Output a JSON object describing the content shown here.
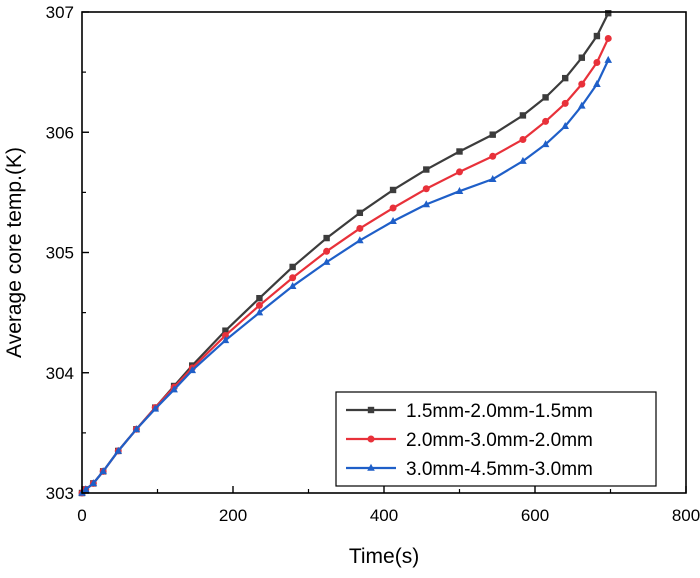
{
  "chart_data": {
    "type": "line",
    "title": "",
    "xlabel": "Time(s)",
    "ylabel": "Average core temp.(K)",
    "xlim": [
      0,
      800
    ],
    "ylim": [
      303,
      307
    ],
    "x_ticks": [
      0,
      200,
      400,
      600,
      800
    ],
    "y_ticks": [
      303,
      304,
      305,
      306,
      307
    ],
    "x_tick_labels": [
      "0",
      "200",
      "400",
      "600",
      "800"
    ],
    "y_tick_labels": [
      "303",
      "304",
      "305",
      "306",
      "307"
    ],
    "grid": false,
    "legend_position": "bottom-right",
    "series": [
      {
        "name": "1.5mm-2.0mm-1.5mm",
        "color": "#3c3c3c",
        "marker": "square",
        "points": [
          [
            0,
            303.0
          ],
          [
            5,
            303.03
          ],
          [
            15,
            303.08
          ],
          [
            28,
            303.18
          ],
          [
            48,
            303.35
          ],
          [
            72,
            303.53
          ],
          [
            97,
            303.71
          ],
          [
            122,
            303.89
          ],
          [
            146,
            304.06
          ],
          [
            190,
            304.35
          ],
          [
            235,
            304.62
          ],
          [
            279,
            304.88
          ],
          [
            324,
            305.12
          ],
          [
            368,
            305.33
          ],
          [
            412,
            305.52
          ],
          [
            456,
            305.69
          ],
          [
            500,
            305.84
          ],
          [
            544,
            305.98
          ],
          [
            584,
            306.14
          ],
          [
            614,
            306.29
          ],
          [
            640,
            306.45
          ],
          [
            662,
            306.62
          ],
          [
            682,
            306.8
          ],
          [
            697,
            306.99
          ]
        ]
      },
      {
        "name": "2.0mm-3.0mm-2.0mm",
        "color": "#e8313a",
        "marker": "circle",
        "points": [
          [
            0,
            303.0
          ],
          [
            5,
            303.03
          ],
          [
            15,
            303.08
          ],
          [
            28,
            303.18
          ],
          [
            48,
            303.35
          ],
          [
            72,
            303.53
          ],
          [
            97,
            303.71
          ],
          [
            122,
            303.88
          ],
          [
            146,
            304.04
          ],
          [
            190,
            304.31
          ],
          [
            235,
            304.56
          ],
          [
            279,
            304.79
          ],
          [
            324,
            305.01
          ],
          [
            368,
            305.2
          ],
          [
            412,
            305.37
          ],
          [
            456,
            305.53
          ],
          [
            500,
            305.67
          ],
          [
            544,
            305.8
          ],
          [
            584,
            305.94
          ],
          [
            614,
            306.09
          ],
          [
            640,
            306.24
          ],
          [
            662,
            306.4
          ],
          [
            682,
            306.58
          ],
          [
            697,
            306.78
          ]
        ]
      },
      {
        "name": "3.0mm-4.5mm-3.0mm",
        "color": "#1f5fc8",
        "marker": "triangle",
        "points": [
          [
            0,
            303.0
          ],
          [
            5,
            303.03
          ],
          [
            15,
            303.08
          ],
          [
            28,
            303.18
          ],
          [
            48,
            303.35
          ],
          [
            72,
            303.53
          ],
          [
            97,
            303.7
          ],
          [
            122,
            303.86
          ],
          [
            146,
            304.02
          ],
          [
            190,
            304.27
          ],
          [
            235,
            304.5
          ],
          [
            279,
            304.72
          ],
          [
            324,
            304.92
          ],
          [
            368,
            305.1
          ],
          [
            412,
            305.26
          ],
          [
            456,
            305.4
          ],
          [
            500,
            305.51
          ],
          [
            544,
            305.61
          ],
          [
            584,
            305.76
          ],
          [
            614,
            305.9
          ],
          [
            640,
            306.05
          ],
          [
            662,
            306.22
          ],
          [
            682,
            306.4
          ],
          [
            697,
            306.6
          ]
        ]
      }
    ]
  }
}
